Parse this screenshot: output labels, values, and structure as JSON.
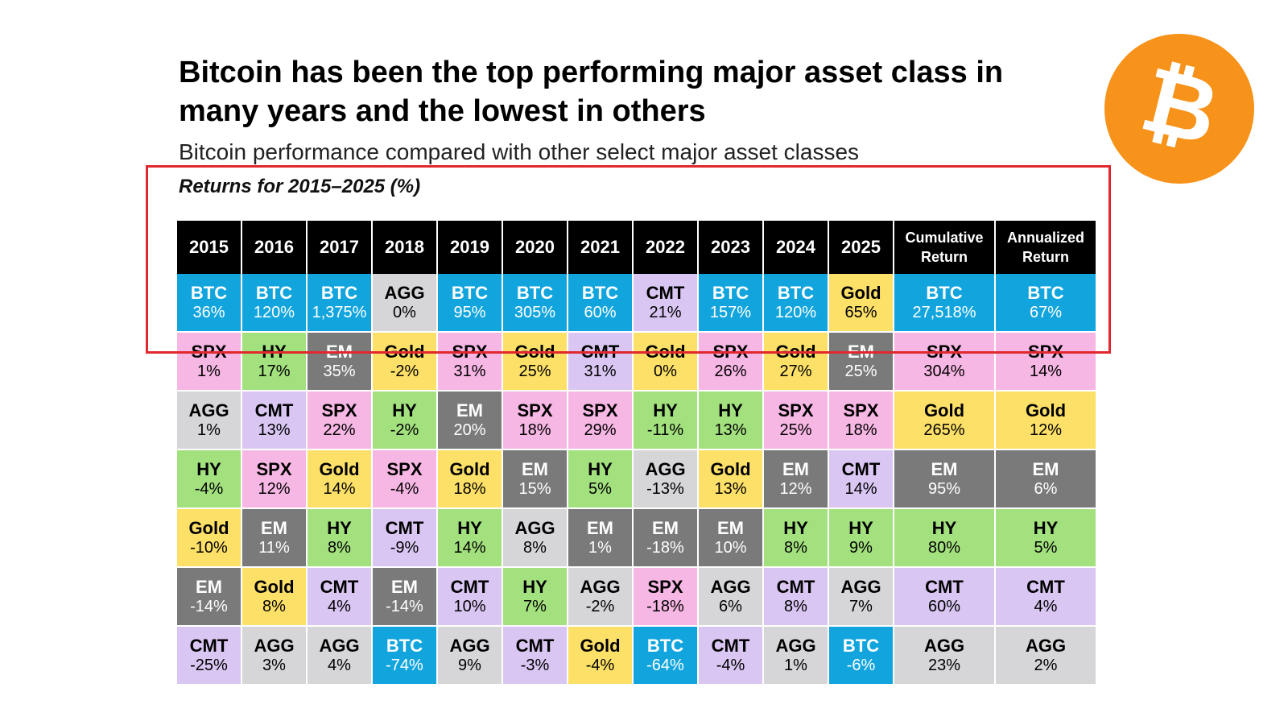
{
  "header": {
    "title": "Bitcoin has been the top performing major asset class in many years and the lowest in others",
    "subtitle": "Bitcoin performance compared with other select major asset classes",
    "returns_label": "Returns for 2015–2025 (%)"
  },
  "logo": {
    "icon": "bitcoin-logo-icon",
    "glyph": "₿",
    "color": "#f7931a"
  },
  "colors": {
    "BTC": {
      "bg": "#12a5dd",
      "fg": "#ffffff"
    },
    "SPX": {
      "bg": "#f7b7e4",
      "fg": "#000000"
    },
    "HY": {
      "bg": "#a3e07e",
      "fg": "#000000"
    },
    "EM": {
      "bg": "#7a7a7a",
      "fg": "#ffffff"
    },
    "Gold": {
      "bg": "#fde068",
      "fg": "#000000"
    },
    "AGG": {
      "bg": "#d6d6d9",
      "fg": "#000000"
    },
    "CMT": {
      "bg": "#d9c6f2",
      "fg": "#000000"
    },
    "header": "#000000",
    "highlight_box": "#e0282e"
  },
  "chart_data": {
    "type": "table",
    "title": "Returns for 2015–2025 (%)",
    "columns": [
      {
        "header": "2015",
        "cells": [
          {
            "asset": "BTC",
            "value": "36%"
          },
          {
            "asset": "SPX",
            "value": "1%"
          },
          {
            "asset": "AGG",
            "value": "1%"
          },
          {
            "asset": "HY",
            "value": "-4%"
          },
          {
            "asset": "Gold",
            "value": "-10%"
          },
          {
            "asset": "EM",
            "value": "-14%"
          },
          {
            "asset": "CMT",
            "value": "-25%"
          }
        ]
      },
      {
        "header": "2016",
        "cells": [
          {
            "asset": "BTC",
            "value": "120%"
          },
          {
            "asset": "HY",
            "value": "17%"
          },
          {
            "asset": "CMT",
            "value": "13%"
          },
          {
            "asset": "SPX",
            "value": "12%"
          },
          {
            "asset": "EM",
            "value": "11%"
          },
          {
            "asset": "Gold",
            "value": "8%"
          },
          {
            "asset": "AGG",
            "value": "3%"
          }
        ]
      },
      {
        "header": "2017",
        "cells": [
          {
            "asset": "BTC",
            "value": "1,375%"
          },
          {
            "asset": "EM",
            "value": "35%"
          },
          {
            "asset": "SPX",
            "value": "22%"
          },
          {
            "asset": "Gold",
            "value": "14%"
          },
          {
            "asset": "HY",
            "value": "8%"
          },
          {
            "asset": "CMT",
            "value": "4%"
          },
          {
            "asset": "AGG",
            "value": "4%"
          }
        ]
      },
      {
        "header": "2018",
        "cells": [
          {
            "asset": "AGG",
            "value": "0%"
          },
          {
            "asset": "Gold",
            "value": "-2%"
          },
          {
            "asset": "HY",
            "value": "-2%"
          },
          {
            "asset": "SPX",
            "value": "-4%"
          },
          {
            "asset": "CMT",
            "value": "-9%"
          },
          {
            "asset": "EM",
            "value": "-14%"
          },
          {
            "asset": "BTC",
            "value": "-74%"
          }
        ]
      },
      {
        "header": "2019",
        "cells": [
          {
            "asset": "BTC",
            "value": "95%"
          },
          {
            "asset": "SPX",
            "value": "31%"
          },
          {
            "asset": "EM",
            "value": "20%"
          },
          {
            "asset": "Gold",
            "value": "18%"
          },
          {
            "asset": "HY",
            "value": "14%"
          },
          {
            "asset": "CMT",
            "value": "10%"
          },
          {
            "asset": "AGG",
            "value": "9%"
          }
        ]
      },
      {
        "header": "2020",
        "cells": [
          {
            "asset": "BTC",
            "value": "305%"
          },
          {
            "asset": "Gold",
            "value": "25%"
          },
          {
            "asset": "SPX",
            "value": "18%"
          },
          {
            "asset": "EM",
            "value": "15%"
          },
          {
            "asset": "AGG",
            "value": "8%"
          },
          {
            "asset": "HY",
            "value": "7%"
          },
          {
            "asset": "CMT",
            "value": "-3%"
          }
        ]
      },
      {
        "header": "2021",
        "cells": [
          {
            "asset": "BTC",
            "value": "60%"
          },
          {
            "asset": "CMT",
            "value": "31%"
          },
          {
            "asset": "SPX",
            "value": "29%"
          },
          {
            "asset": "HY",
            "value": "5%"
          },
          {
            "asset": "EM",
            "value": "1%"
          },
          {
            "asset": "AGG",
            "value": "-2%"
          },
          {
            "asset": "Gold",
            "value": "-4%"
          }
        ]
      },
      {
        "header": "2022",
        "cells": [
          {
            "asset": "CMT",
            "value": "21%"
          },
          {
            "asset": "Gold",
            "value": "0%"
          },
          {
            "asset": "HY",
            "value": "-11%"
          },
          {
            "asset": "AGG",
            "value": "-13%"
          },
          {
            "asset": "EM",
            "value": "-18%"
          },
          {
            "asset": "SPX",
            "value": "-18%"
          },
          {
            "asset": "BTC",
            "value": "-64%"
          }
        ]
      },
      {
        "header": "2023",
        "cells": [
          {
            "asset": "BTC",
            "value": "157%"
          },
          {
            "asset": "SPX",
            "value": "26%"
          },
          {
            "asset": "HY",
            "value": "13%"
          },
          {
            "asset": "Gold",
            "value": "13%"
          },
          {
            "asset": "EM",
            "value": "10%"
          },
          {
            "asset": "AGG",
            "value": "6%"
          },
          {
            "asset": "CMT",
            "value": "-4%"
          }
        ]
      },
      {
        "header": "2024",
        "cells": [
          {
            "asset": "BTC",
            "value": "120%"
          },
          {
            "asset": "Gold",
            "value": "27%"
          },
          {
            "asset": "SPX",
            "value": "25%"
          },
          {
            "asset": "EM",
            "value": "12%"
          },
          {
            "asset": "HY",
            "value": "8%"
          },
          {
            "asset": "CMT",
            "value": "8%"
          },
          {
            "asset": "AGG",
            "value": "1%"
          }
        ]
      },
      {
        "header": "2025",
        "cells": [
          {
            "asset": "Gold",
            "value": "65%"
          },
          {
            "asset": "EM",
            "value": "25%"
          },
          {
            "asset": "SPX",
            "value": "18%"
          },
          {
            "asset": "CMT",
            "value": "14%"
          },
          {
            "asset": "HY",
            "value": "9%"
          },
          {
            "asset": "AGG",
            "value": "7%"
          },
          {
            "asset": "BTC",
            "value": "-6%"
          }
        ]
      },
      {
        "header": "Cumulative\nReturn",
        "cells": [
          {
            "asset": "BTC",
            "value": "27,518%"
          },
          {
            "asset": "SPX",
            "value": "304%"
          },
          {
            "asset": "Gold",
            "value": "265%"
          },
          {
            "asset": "EM",
            "value": "95%"
          },
          {
            "asset": "HY",
            "value": "80%"
          },
          {
            "asset": "CMT",
            "value": "60%"
          },
          {
            "asset": "AGG",
            "value": "23%"
          }
        ]
      },
      {
        "header": "Annualized\nReturn",
        "cells": [
          {
            "asset": "BTC",
            "value": "67%"
          },
          {
            "asset": "SPX",
            "value": "14%"
          },
          {
            "asset": "Gold",
            "value": "12%"
          },
          {
            "asset": "EM",
            "value": "6%"
          },
          {
            "asset": "HY",
            "value": "5%"
          },
          {
            "asset": "CMT",
            "value": "4%"
          },
          {
            "asset": "AGG",
            "value": "2%"
          }
        ]
      }
    ]
  }
}
